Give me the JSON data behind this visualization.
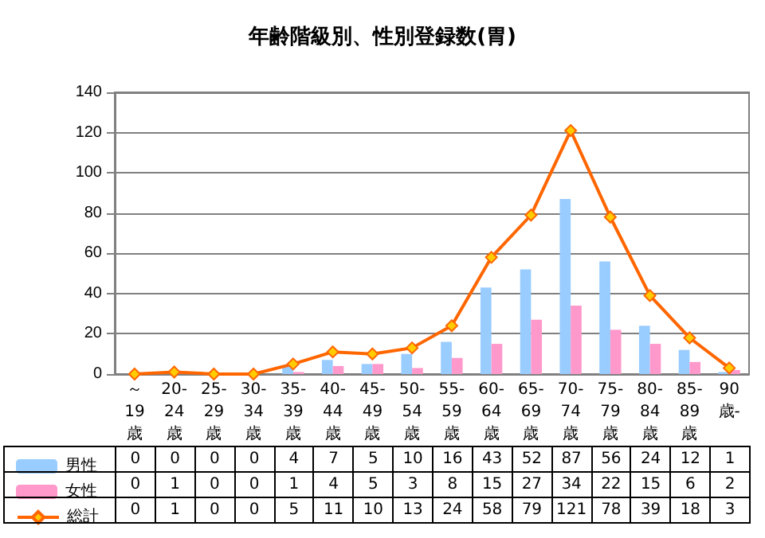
{
  "chart_data": {
    "type": "bar",
    "title": "年齢階級別、性別登録数(胃)",
    "categories": [
      "～19歳",
      "20-24歳",
      "25-29歳",
      "30-34歳",
      "35-39歳",
      "40-44歳",
      "45-49歳",
      "50-54歳",
      "55-59歳",
      "60-64歳",
      "65-69歳",
      "70-74歳",
      "75-79歳",
      "80-84歳",
      "85-89歳",
      "90歳-"
    ],
    "series": [
      {
        "name": "男性",
        "color": "#99ccff",
        "values": [
          0,
          0,
          0,
          0,
          4,
          7,
          5,
          10,
          16,
          43,
          52,
          87,
          56,
          24,
          12,
          1
        ]
      },
      {
        "name": "女性",
        "color": "#ff99cc",
        "values": [
          0,
          1,
          0,
          0,
          1,
          4,
          5,
          3,
          8,
          15,
          27,
          34,
          22,
          15,
          6,
          2
        ]
      },
      {
        "name": "総計",
        "type": "line",
        "color": "#ff6600",
        "marker": "diamond",
        "values": [
          0,
          1,
          0,
          0,
          5,
          11,
          10,
          13,
          24,
          58,
          79,
          121,
          78,
          39,
          18,
          3
        ]
      }
    ],
    "ylim": [
      0,
      140
    ],
    "yticks": [
      0,
      20,
      40,
      60,
      80,
      100,
      120,
      140
    ],
    "grid": "y",
    "legend": "bottom left",
    "data_labels": true
  }
}
